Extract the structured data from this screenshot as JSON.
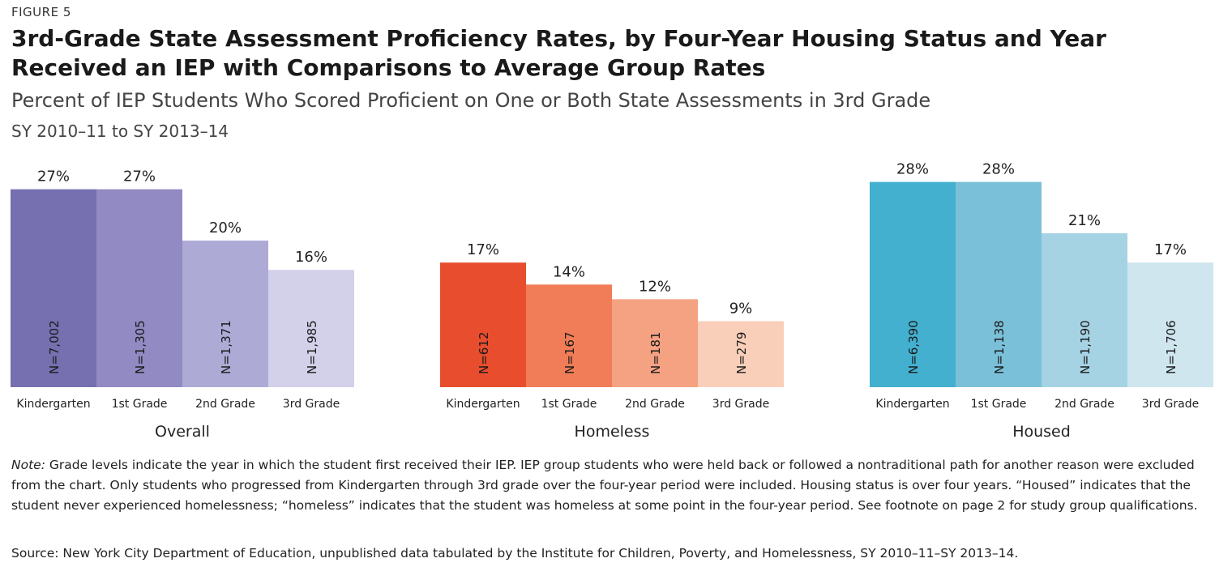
{
  "figure_label": "FIGURE 5",
  "title": "3rd-Grade State Assessment Proficiency Rates, by Four-Year Housing Status and Year Received an IEP with Comparisons to Average Group Rates",
  "subtitle": "Percent of IEP Students Who Scored Proficient on One or Both State Assessments in 3rd Grade",
  "date_range": "SY 2010–11 to SY 2013–14",
  "note_label": "Note:",
  "note_text": " Grade levels indicate the year in which the student first received their IEP. IEP group students who were held back or followed a nontraditional path for another reason were excluded from the chart. Only students who progressed from Kindergarten through 3rd grade over the four-year period were included. Housing status is over four years. “Housed” indicates that the student never experienced homelessness; “homeless” indicates that the student was homeless at some point in the four-year period. See footnote on page 2 for study group qualifications.",
  "source": "Source: New York City Department of Education, unpublished data tabulated by the Institute for Children, Poverty, and Homelessness, SY 2010–11–SY 2013–14.",
  "chart_data": {
    "type": "bar",
    "ylim": [
      0,
      30
    ],
    "categories": [
      "Kindergarten",
      "1st Grade",
      "2nd Grade",
      "3rd Grade"
    ],
    "groups": [
      {
        "name": "Overall",
        "values": [
          27,
          27,
          20,
          16
        ],
        "value_labels": [
          "27%",
          "27%",
          "20%",
          "16%"
        ],
        "n_labels": [
          "N=7,002",
          "N=1,305",
          "N=1,371",
          "N=1,985"
        ],
        "colors": [
          "#7670b0",
          "#918ac3",
          "#aeaad6",
          "#d3d0e9"
        ]
      },
      {
        "name": "Homeless",
        "values": [
          17,
          14,
          12,
          9
        ],
        "value_labels": [
          "17%",
          "14%",
          "12%",
          "9%"
        ],
        "n_labels": [
          "N=612",
          "N=167",
          "N=181",
          "N=279"
        ],
        "colors": [
          "#e84e2e",
          "#f07d57",
          "#f5a283",
          "#f9cfb9"
        ]
      },
      {
        "name": "Housed",
        "values": [
          28,
          28,
          21,
          17
        ],
        "value_labels": [
          "28%",
          "28%",
          "21%",
          "17%"
        ],
        "n_labels": [
          "N=6,390",
          "N=1,138",
          "N=1,190",
          "N=1,706"
        ],
        "colors": [
          "#44b0cf",
          "#7bc0d9",
          "#a6d3e3",
          "#cfe6ef"
        ]
      }
    ]
  }
}
